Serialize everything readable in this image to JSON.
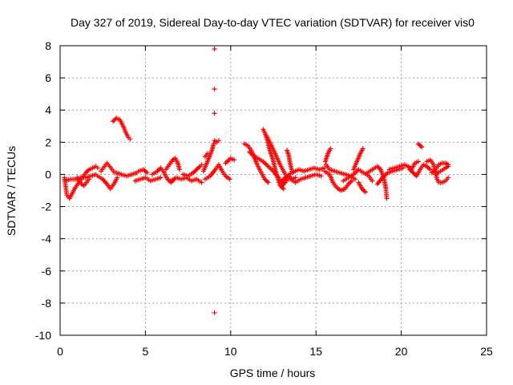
{
  "chart_data": {
    "type": "scatter",
    "title": "Day 327 of 2019, Sidereal Day-to-day VTEC variation (SDTVAR) for receiver vis0",
    "xlabel": "GPS time / hours",
    "ylabel": "SDTVAR / TECUs",
    "xlim": [
      0,
      25
    ],
    "ylim": [
      -10,
      8
    ],
    "x_ticks": [
      0,
      5,
      10,
      15,
      20,
      25
    ],
    "y_ticks": [
      -10,
      -8,
      -6,
      -4,
      -2,
      0,
      2,
      4,
      6,
      8
    ],
    "x_tick_labels": [
      "0",
      "5",
      "10",
      "15",
      "20",
      "25"
    ],
    "y_tick_labels": [
      "-10",
      "-8",
      "-6",
      "-4",
      "-2",
      "0",
      "2",
      "4",
      "6",
      "8"
    ],
    "grid": true,
    "marker": "+",
    "color": "#ff0000",
    "series": [
      {
        "name": "SDTVAR",
        "segments": [
          [
            [
              0.25,
              -0.2
            ],
            [
              0.4,
              -1.3
            ],
            [
              0.55,
              -1.5
            ],
            [
              0.7,
              -1.2
            ],
            [
              0.9,
              -0.8
            ],
            [
              1.1,
              -0.5
            ],
            [
              1.3,
              -0.2
            ],
            [
              1.5,
              0.1
            ],
            [
              1.7,
              0.3
            ],
            [
              1.9,
              0.4
            ],
            [
              2.1,
              0.5
            ],
            [
              2.2,
              0.4
            ]
          ],
          [
            [
              0.3,
              -0.4
            ],
            [
              0.6,
              -0.3
            ],
            [
              0.9,
              -0.3
            ],
            [
              1.2,
              -0.2
            ],
            [
              1.5,
              -0.2
            ],
            [
              1.8,
              -0.1
            ],
            [
              2.1,
              0.0
            ]
          ],
          [
            [
              1.0,
              -0.2
            ],
            [
              1.1,
              -0.4
            ],
            [
              1.25,
              -0.6
            ],
            [
              1.4,
              -0.7
            ],
            [
              1.55,
              -0.5
            ],
            [
              1.7,
              -0.3
            ]
          ],
          [
            [
              2.4,
              0.2
            ],
            [
              2.6,
              0.5
            ],
            [
              2.75,
              0.7
            ],
            [
              2.9,
              0.5
            ],
            [
              3.05,
              0.3
            ],
            [
              3.2,
              0.1
            ]
          ],
          [
            [
              2.2,
              -0.1
            ],
            [
              2.5,
              -0.3
            ],
            [
              2.75,
              -0.6
            ],
            [
              2.95,
              -0.9
            ],
            [
              3.15,
              -0.6
            ],
            [
              3.35,
              -0.2
            ]
          ],
          [
            [
              3.1,
              3.3
            ],
            [
              3.3,
              3.5
            ],
            [
              3.5,
              3.4
            ],
            [
              3.7,
              3.0
            ],
            [
              3.85,
              2.6
            ],
            [
              4.0,
              2.3
            ],
            [
              4.1,
              2.2
            ]
          ],
          [
            [
              3.3,
              0.1
            ],
            [
              3.6,
              0.0
            ],
            [
              3.9,
              -0.1
            ],
            [
              4.2,
              0.0
            ],
            [
              4.5,
              0.1
            ]
          ],
          [
            [
              4.4,
              -0.4
            ],
            [
              4.7,
              -0.3
            ],
            [
              5.0,
              -0.2
            ],
            [
              5.3,
              -0.4
            ],
            [
              5.6,
              -0.3
            ],
            [
              5.9,
              -0.2
            ]
          ],
          [
            [
              4.6,
              0.2
            ],
            [
              4.9,
              0.3
            ],
            [
              5.1,
              0.1
            ]
          ],
          [
            [
              5.4,
              0.0
            ],
            [
              5.7,
              0.2
            ],
            [
              5.9,
              0.4
            ],
            [
              6.1,
              0.1
            ],
            [
              6.3,
              -0.3
            ],
            [
              6.5,
              -0.5
            ],
            [
              6.7,
              -0.3
            ]
          ],
          [
            [
              6.2,
              0.3
            ],
            [
              6.4,
              0.6
            ],
            [
              6.6,
              0.9
            ],
            [
              6.75,
              1.0
            ],
            [
              6.9,
              0.7
            ],
            [
              7.0,
              0.3
            ]
          ],
          [
            [
              6.5,
              -0.4
            ],
            [
              6.8,
              -0.2
            ],
            [
              7.1,
              -0.3
            ],
            [
              7.4,
              -0.2
            ],
            [
              7.7,
              -0.4
            ],
            [
              8.0,
              -0.3
            ],
            [
              8.3,
              -0.5
            ]
          ],
          [
            [
              7.2,
              0.0
            ],
            [
              7.5,
              -0.1
            ],
            [
              7.8,
              0.1
            ],
            [
              8.0,
              0.3
            ],
            [
              8.2,
              0.5
            ],
            [
              8.3,
              0.6
            ]
          ],
          [
            [
              8.4,
              0.2
            ],
            [
              8.6,
              0.7
            ],
            [
              8.75,
              1.1
            ],
            [
              8.9,
              1.5
            ],
            [
              9.0,
              1.9
            ]
          ],
          [
            [
              8.5,
              -0.3
            ],
            [
              8.8,
              -0.1
            ],
            [
              9.1,
              0.3
            ],
            [
              9.3,
              0.6
            ],
            [
              9.5,
              0.2
            ],
            [
              9.7,
              -0.1
            ],
            [
              9.95,
              -0.3
            ]
          ],
          [
            [
              9.05,
              2.1
            ],
            [
              9.2,
              2.0
            ],
            [
              9.3,
              2.1
            ]
          ],
          [
            [
              8.5,
              1.1
            ],
            [
              8.65,
              1.3
            ]
          ],
          [
            [
              9.7,
              0.7
            ],
            [
              10.0,
              1.0
            ],
            [
              10.2,
              0.9
            ]
          ],
          [
            [
              10.8,
              1.9
            ],
            [
              11.0,
              1.8
            ],
            [
              11.2,
              1.5
            ],
            [
              11.4,
              1.0
            ],
            [
              11.6,
              0.5
            ],
            [
              11.8,
              0.1
            ],
            [
              12.0,
              -0.3
            ],
            [
              12.2,
              -0.5
            ]
          ],
          [
            [
              11.1,
              1.4
            ],
            [
              11.3,
              1.2
            ],
            [
              11.6,
              1.0
            ],
            [
              11.9,
              0.8
            ],
            [
              12.2,
              0.5
            ],
            [
              12.5,
              0.2
            ],
            [
              12.8,
              -0.2
            ],
            [
              13.0,
              -0.5
            ]
          ],
          [
            [
              11.9,
              2.8
            ],
            [
              12.0,
              2.6
            ],
            [
              12.15,
              2.1
            ],
            [
              12.3,
              1.5
            ],
            [
              12.45,
              1.0
            ],
            [
              12.6,
              0.4
            ],
            [
              12.75,
              -0.2
            ],
            [
              12.9,
              -0.7
            ],
            [
              13.1,
              -0.9
            ]
          ],
          [
            [
              12.1,
              2.4
            ],
            [
              12.3,
              2.0
            ],
            [
              12.6,
              1.3
            ],
            [
              12.9,
              0.6
            ],
            [
              13.2,
              0.0
            ],
            [
              13.4,
              -0.3
            ]
          ],
          [
            [
              13.0,
              -0.7
            ],
            [
              13.2,
              -0.5
            ],
            [
              13.4,
              0.0
            ],
            [
              13.6,
              0.1
            ],
            [
              13.8,
              0.2
            ],
            [
              14.0,
              0.3
            ],
            [
              14.3,
              0.2
            ],
            [
              14.6,
              0.3
            ],
            [
              14.9,
              0.4
            ],
            [
              15.2,
              0.3
            ],
            [
              15.5,
              0.4
            ]
          ],
          [
            [
              13.0,
              -0.4
            ],
            [
              13.2,
              -0.2
            ],
            [
              13.4,
              -0.1
            ],
            [
              13.6,
              -0.3
            ],
            [
              13.8,
              -0.2
            ]
          ],
          [
            [
              13.3,
              1.5
            ],
            [
              13.4,
              1.2
            ],
            [
              13.5,
              0.6
            ],
            [
              13.6,
              0.2
            ]
          ],
          [
            [
              13.5,
              -0.3
            ],
            [
              13.8,
              -0.5
            ],
            [
              14.1,
              -0.3
            ],
            [
              14.4,
              -0.2
            ],
            [
              14.7,
              -0.1
            ],
            [
              15.0,
              0.0
            ],
            [
              15.3,
              -0.1
            ]
          ],
          [
            [
              15.5,
              0.2
            ],
            [
              15.8,
              0.0
            ],
            [
              16.0,
              -0.5
            ],
            [
              16.2,
              -0.8
            ],
            [
              16.45,
              -1.0
            ],
            [
              16.7,
              -0.9
            ],
            [
              16.9,
              -0.6
            ],
            [
              17.1,
              -0.4
            ]
          ],
          [
            [
              15.6,
              0.6
            ],
            [
              15.8,
              0.3
            ],
            [
              16.1,
              0.2
            ],
            [
              16.4,
              0.1
            ],
            [
              16.7,
              0.0
            ],
            [
              17.0,
              -0.1
            ],
            [
              17.3,
              -0.3
            ]
          ],
          [
            [
              15.55,
              0.8
            ],
            [
              15.7,
              1.3
            ],
            [
              15.85,
              1.6
            ]
          ],
          [
            [
              16.6,
              -0.4
            ],
            [
              16.9,
              -0.2
            ],
            [
              17.2,
              0.0
            ],
            [
              17.5,
              0.3
            ],
            [
              17.8,
              0.1
            ],
            [
              18.1,
              -0.1
            ],
            [
              18.3,
              -0.4
            ]
          ],
          [
            [
              17.2,
              0.3
            ],
            [
              17.4,
              0.8
            ],
            [
              17.6,
              1.3
            ],
            [
              17.75,
              1.6
            ]
          ],
          [
            [
              17.5,
              -0.5
            ],
            [
              17.7,
              -0.9
            ],
            [
              17.9,
              -1.1
            ]
          ],
          [
            [
              18.0,
              0.1
            ],
            [
              18.3,
              0.3
            ],
            [
              18.6,
              0.5
            ],
            [
              18.8,
              0.3
            ],
            [
              19.0,
              -0.3
            ],
            [
              19.1,
              -0.9
            ],
            [
              19.15,
              -1.5
            ]
          ],
          [
            [
              18.6,
              -0.6
            ],
            [
              18.9,
              -0.2
            ],
            [
              19.2,
              0.1
            ],
            [
              19.5,
              0.2
            ],
            [
              19.8,
              0.3
            ],
            [
              20.1,
              0.4
            ]
          ],
          [
            [
              19.3,
              0.3
            ],
            [
              19.6,
              0.4
            ],
            [
              19.9,
              0.5
            ],
            [
              20.2,
              0.6
            ],
            [
              20.4,
              0.5
            ],
            [
              20.6,
              0.3
            ],
            [
              20.8,
              0.7
            ],
            [
              21.0,
              0.8
            ]
          ],
          [
            [
              20.5,
              0.3
            ],
            [
              20.7,
              0.1
            ],
            [
              20.9,
              -0.1
            ],
            [
              21.1,
              0.3
            ],
            [
              21.3,
              0.6
            ],
            [
              21.5,
              0.5
            ],
            [
              21.7,
              0.3
            ]
          ],
          [
            [
              21.0,
              1.9
            ],
            [
              21.2,
              1.7
            ]
          ],
          [
            [
              21.5,
              0.8
            ],
            [
              21.7,
              0.9
            ],
            [
              21.9,
              0.6
            ],
            [
              22.0,
              0.2
            ],
            [
              22.1,
              -0.3
            ],
            [
              22.2,
              -0.5
            ],
            [
              22.4,
              -0.5
            ],
            [
              22.6,
              -0.4
            ],
            [
              22.75,
              -0.2
            ]
          ],
          [
            [
              21.8,
              0.1
            ],
            [
              22.0,
              0.3
            ],
            [
              22.2,
              0.6
            ],
            [
              22.4,
              0.7
            ],
            [
              22.6,
              0.7
            ],
            [
              22.75,
              0.6
            ]
          ],
          [
            [
              22.0,
              0.0
            ],
            [
              22.3,
              0.2
            ],
            [
              22.6,
              0.4
            ],
            [
              22.75,
              0.5
            ]
          ]
        ],
        "outliers": [
          [
            9.05,
            7.8
          ],
          [
            9.05,
            5.3
          ],
          [
            9.05,
            3.8
          ],
          [
            9.05,
            -8.6
          ]
        ]
      }
    ]
  }
}
